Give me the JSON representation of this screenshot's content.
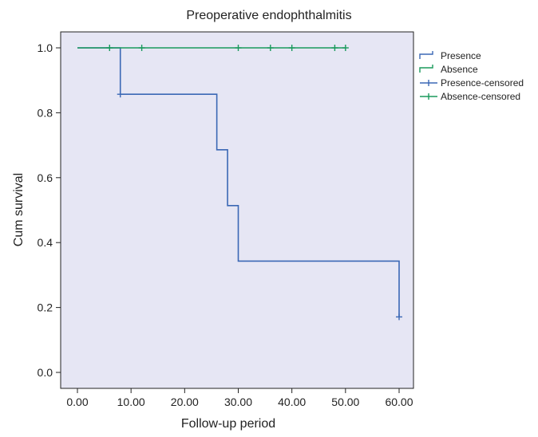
{
  "chart_data": {
    "type": "line",
    "subtype": "kaplan-meier step",
    "title": "Preoperative endophthalmitis",
    "xlabel": "Follow-up period",
    "ylabel": "Cum survival",
    "xlim": [
      0,
      60
    ],
    "ylim": [
      0,
      1.0
    ],
    "x_ticks": [
      "0.00",
      "10.00",
      "20.00",
      "30.00",
      "40.00",
      "50.00",
      "60.00"
    ],
    "y_ticks": [
      "0.0",
      "0.2",
      "0.4",
      "0.6",
      "0.8",
      "1.0"
    ],
    "grid": false,
    "background_color": "#e6e6f4",
    "legend_position": "right",
    "legend": [
      "Presence",
      "Absence",
      "Presence-censored",
      "Absence-censored"
    ],
    "series": [
      {
        "name": "Presence",
        "color": "#3b68b5",
        "steps": [
          [
            0,
            1.0
          ],
          [
            8,
            0.857
          ],
          [
            26,
            0.686
          ],
          [
            28,
            0.514
          ],
          [
            30,
            0.343
          ],
          [
            60,
            0.171
          ]
        ],
        "censored": [
          [
            8,
            0.857
          ],
          [
            60,
            0.171
          ]
        ]
      },
      {
        "name": "Absence",
        "color": "#1a9a5c",
        "steps": [
          [
            0,
            1.0
          ],
          [
            50,
            1.0
          ]
        ],
        "censored": [
          [
            6,
            1.0
          ],
          [
            12,
            1.0
          ],
          [
            30,
            1.0
          ],
          [
            36,
            1.0
          ],
          [
            40,
            1.0
          ],
          [
            48,
            1.0
          ],
          [
            50,
            1.0
          ]
        ]
      }
    ]
  }
}
